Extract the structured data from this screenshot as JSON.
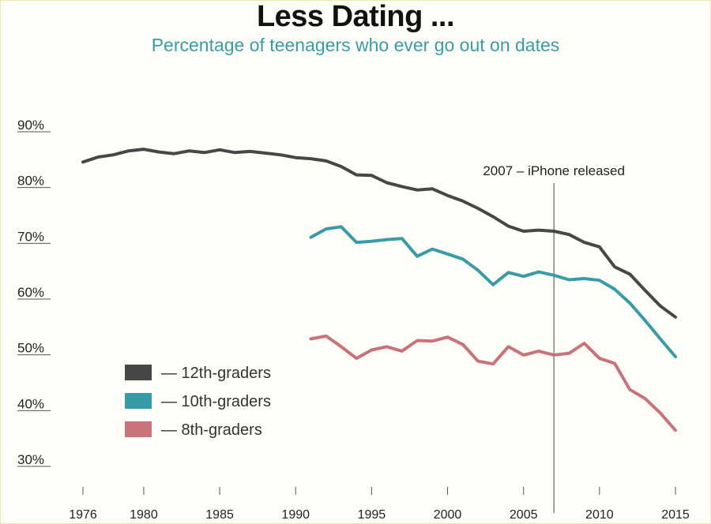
{
  "chart_data": {
    "type": "line",
    "title": "Less Dating ...",
    "subtitle": "Percentage of teenagers who ever go out on dates",
    "xlabel": "",
    "ylabel": "",
    "xlim": [
      1976,
      2015
    ],
    "ylim": [
      30,
      90
    ],
    "y_ticks": [
      {
        "value": 90,
        "label": "90%"
      },
      {
        "value": 80,
        "label": "80%"
      },
      {
        "value": 70,
        "label": "70%"
      },
      {
        "value": 60,
        "label": "60%"
      },
      {
        "value": 50,
        "label": "50%"
      },
      {
        "value": 40,
        "label": "40%"
      },
      {
        "value": 30,
        "label": "30%"
      }
    ],
    "x_ticks": [
      {
        "value": 1976,
        "label": "1976"
      },
      {
        "value": 1980,
        "label": "1980"
      },
      {
        "value": 1985,
        "label": "1985"
      },
      {
        "value": 1990,
        "label": "1990"
      },
      {
        "value": 1995,
        "label": "1995"
      },
      {
        "value": 2000,
        "label": "2000"
      },
      {
        "value": 2005,
        "label": "2005"
      },
      {
        "value": 2010,
        "label": "2010"
      },
      {
        "value": 2015,
        "label": "2015"
      }
    ],
    "annotation": {
      "x": 2007,
      "label": "2007 – iPhone released"
    },
    "legend_position": "bottom-left",
    "series": [
      {
        "name": "12th-graders",
        "legend_label": "— 12th-graders",
        "color": "#474747",
        "x": [
          1976,
          1977,
          1978,
          1979,
          1980,
          1981,
          1982,
          1983,
          1984,
          1985,
          1986,
          1987,
          1988,
          1989,
          1990,
          1991,
          1992,
          1993,
          1994,
          1995,
          1996,
          1997,
          1998,
          1999,
          2000,
          2001,
          2002,
          2003,
          2004,
          2005,
          2006,
          2007,
          2008,
          2009,
          2010,
          2011,
          2012,
          2013,
          2014,
          2015
        ],
        "values": [
          83.3,
          84.2,
          84.6,
          85.3,
          85.6,
          85.1,
          84.8,
          85.3,
          85.0,
          85.5,
          85.0,
          85.2,
          84.9,
          84.6,
          84.1,
          83.9,
          83.5,
          82.5,
          81.0,
          80.9,
          79.6,
          78.9,
          78.3,
          78.5,
          77.3,
          76.3,
          75.0,
          73.5,
          71.8,
          70.9,
          71.1,
          70.9,
          70.3,
          68.9,
          68.1,
          64.5,
          63.2,
          60.3,
          57.5,
          55.5
        ]
      },
      {
        "name": "10th-graders",
        "legend_label": "— 10th-graders",
        "color": "#3a9ba8",
        "x": [
          1991,
          1992,
          1993,
          1994,
          1995,
          1996,
          1997,
          1998,
          1999,
          2000,
          2001,
          2002,
          2003,
          2004,
          2005,
          2006,
          2007,
          2008,
          2009,
          2010,
          2011,
          2012,
          2013,
          2014,
          2015
        ],
        "values": [
          69.8,
          71.3,
          71.7,
          68.9,
          69.1,
          69.4,
          69.6,
          66.4,
          67.7,
          66.8,
          65.9,
          63.9,
          61.3,
          63.5,
          62.8,
          63.6,
          63.0,
          62.2,
          62.4,
          62.1,
          60.5,
          58.0,
          54.9,
          51.6,
          48.4
        ]
      },
      {
        "name": "8th-graders",
        "legend_label": "— 8th-graders",
        "color": "#c9727a",
        "x": [
          1991,
          1992,
          1993,
          1994,
          1995,
          1996,
          1997,
          1998,
          1999,
          2000,
          2001,
          2002,
          2003,
          2004,
          2005,
          2006,
          2007,
          2008,
          2009,
          2010,
          2011,
          2012,
          2013,
          2014,
          2015
        ],
        "values": [
          51.6,
          52.1,
          50.2,
          48.1,
          49.6,
          50.2,
          49.4,
          51.3,
          51.2,
          51.9,
          50.6,
          47.6,
          47.1,
          50.2,
          48.7,
          49.4,
          48.7,
          49.0,
          50.8,
          48.1,
          47.2,
          42.5,
          40.9,
          38.3,
          35.2
        ]
      }
    ]
  }
}
